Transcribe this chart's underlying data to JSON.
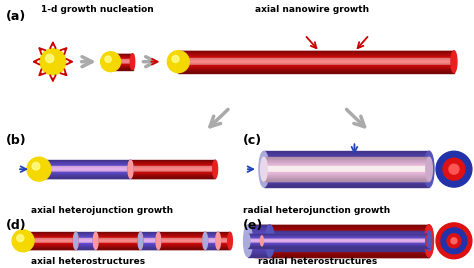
{
  "bg_color": "#ffffff",
  "gold_color": "#f5d800",
  "gold_highlight": "#ffff99",
  "red_core": "#e82020",
  "red_light": "#ff9999",
  "red_mid": "#ff4444",
  "blue_color": "#5555bb",
  "blue_light": "#aaaadd",
  "blue_mid": "#7777cc",
  "label_a": "(a)",
  "label_b": "(b)",
  "label_c": "(c)",
  "label_d": "(d)",
  "label_e": "(e)",
  "text_nucleation": "1-d growth nucleation",
  "text_axial_growth": "axial nanowire growth",
  "text_axial_hetero_growth": "axial heterojunction growth",
  "text_radial_hetero_growth": "radial heterojunction growth",
  "text_axial_heterostructures": "axial heterostructures",
  "text_radial_heterostructures": "radial heterostructures",
  "gray_arrow_color": "#aaaaaa",
  "blue_arrow_color": "#2244bb",
  "red_arrow_color": "#cc0000"
}
